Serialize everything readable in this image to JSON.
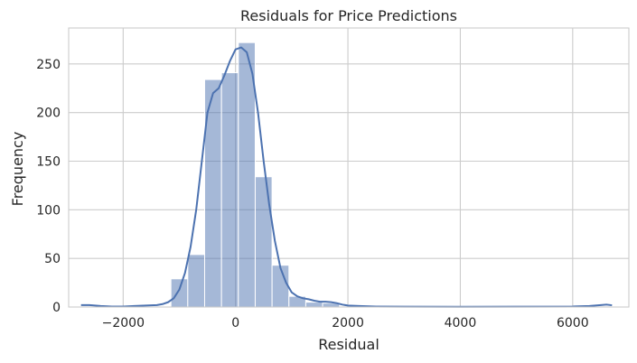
{
  "chart_data": {
    "type": "bar",
    "title": "Residuals for Price Predictions",
    "xlabel": "Residual",
    "ylabel": "Frequency",
    "xlim": [
      -2970,
      7000
    ],
    "ylim": [
      0,
      287
    ],
    "xticks": [
      -2000,
      0,
      2000,
      4000,
      6000
    ],
    "xtick_labels": [
      "−2000",
      "0",
      "2000",
      "4000",
      "6000"
    ],
    "yticks": [
      0,
      50,
      100,
      150,
      200,
      250
    ],
    "ytick_labels": [
      "0",
      "50",
      "100",
      "150",
      "200",
      "250"
    ],
    "grid": true,
    "legend": "none",
    "bins": {
      "left_edges": [
        -1150,
        -850,
        -550,
        -250,
        50,
        350,
        650,
        950,
        1250,
        1550
      ],
      "width": 300,
      "counts": [
        29,
        54,
        234,
        241,
        272,
        134,
        43,
        11,
        5,
        4
      ]
    },
    "kde": {
      "x": [
        -2750,
        -2600,
        -2400,
        -2200,
        -2000,
        -1800,
        -1600,
        -1400,
        -1300,
        -1200,
        -1100,
        -1000,
        -900,
        -800,
        -700,
        -600,
        -500,
        -400,
        -300,
        -200,
        -100,
        0,
        100,
        200,
        300,
        400,
        500,
        600,
        700,
        800,
        900,
        1000,
        1100,
        1200,
        1300,
        1400,
        1500,
        1600,
        1700,
        1800,
        1900,
        2000,
        2200,
        2500,
        3000,
        4000,
        5000,
        6000,
        6300,
        6500,
        6600,
        6700
      ],
      "y": [
        2,
        2,
        1,
        0.5,
        0.5,
        1,
        1.5,
        2,
        3,
        5,
        9,
        18,
        35,
        62,
        100,
        150,
        200,
        220,
        225,
        238,
        253,
        265,
        267,
        262,
        240,
        200,
        150,
        105,
        68,
        40,
        25,
        15,
        11,
        9,
        8,
        6.5,
        5.5,
        5.5,
        5,
        4,
        2.5,
        1.5,
        1,
        0.5,
        0.3,
        0.2,
        0.3,
        0.5,
        1,
        2,
        2.5,
        1.8
      ]
    },
    "colors": {
      "bars": "#4c72b0",
      "kde_line": "#4c72b0",
      "grid": "#cccccc",
      "background": "#ffffff",
      "text": "#262626"
    }
  }
}
